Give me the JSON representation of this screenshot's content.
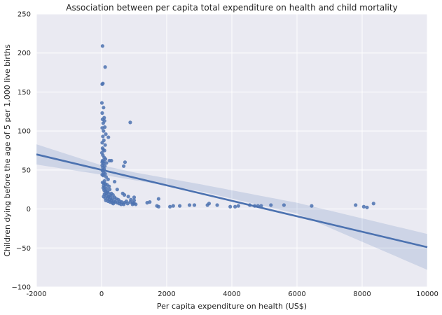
{
  "chart_data": {
    "type": "scatter",
    "title": "Association between per capita total expenditure on health and child mortality",
    "xlabel": "Per capita expenditure on health (US$)",
    "ylabel": "Children dying before the age of 5 per 1,000 live births",
    "xlim": [
      -2000,
      10000
    ],
    "ylim": [
      -100,
      250
    ],
    "xticks": [
      -2000,
      0,
      2000,
      4000,
      6000,
      8000,
      10000
    ],
    "yticks": [
      -100,
      -50,
      0,
      50,
      100,
      150,
      200,
      250
    ],
    "grid": true,
    "colors": {
      "background": "#eaeaf2",
      "grid": "#ffffff",
      "points": "#4c72b0",
      "regression_line": "#4c72b0",
      "confidence_band": "#4c72b0"
    },
    "regression": {
      "line": [
        [
          -2000,
          70
        ],
        [
          10000,
          -49
        ]
      ],
      "ci_upper": [
        [
          -2000,
          83
        ],
        [
          0,
          56
        ],
        [
          1000,
          47
        ],
        [
          3000,
          32
        ],
        [
          6000,
          8
        ],
        [
          10000,
          -32
        ]
      ],
      "ci_lower": [
        [
          -2000,
          57
        ],
        [
          0,
          44
        ],
        [
          1000,
          37
        ],
        [
          3000,
          23
        ],
        [
          6000,
          -6
        ],
        [
          10000,
          -78
        ]
      ]
    },
    "points": [
      [
        30,
        209
      ],
      [
        110,
        182
      ],
      [
        20,
        160
      ],
      [
        40,
        161
      ],
      [
        10,
        136
      ],
      [
        60,
        130
      ],
      [
        20,
        123
      ],
      [
        80,
        117
      ],
      [
        30,
        115
      ],
      [
        90,
        113
      ],
      [
        50,
        110
      ],
      [
        100,
        105
      ],
      [
        20,
        104
      ],
      [
        60,
        100
      ],
      [
        130,
        96
      ],
      [
        40,
        93
      ],
      [
        210,
        92
      ],
      [
        70,
        88
      ],
      [
        20,
        85
      ],
      [
        110,
        82
      ],
      [
        30,
        78
      ],
      [
        50,
        76
      ],
      [
        90,
        75
      ],
      [
        10,
        72
      ],
      [
        40,
        69
      ],
      [
        80,
        66
      ],
      [
        120,
        64
      ],
      [
        30,
        62
      ],
      [
        20,
        60
      ],
      [
        70,
        61
      ],
      [
        150,
        59
      ],
      [
        240,
        62
      ],
      [
        60,
        58
      ],
      [
        20,
        56
      ],
      [
        100,
        55
      ],
      [
        40,
        53
      ],
      [
        80,
        51
      ],
      [
        30,
        49
      ],
      [
        60,
        47
      ],
      [
        110,
        45
      ],
      [
        20,
        44
      ],
      [
        50,
        43
      ],
      [
        140,
        41
      ],
      [
        200,
        38
      ],
      [
        90,
        36
      ],
      [
        30,
        34
      ],
      [
        70,
        33
      ],
      [
        120,
        32
      ],
      [
        170,
        31
      ],
      [
        60,
        30
      ],
      [
        230,
        29
      ],
      [
        100,
        28
      ],
      [
        50,
        27
      ],
      [
        150,
        26
      ],
      [
        250,
        25
      ],
      [
        80,
        24
      ],
      [
        120,
        23
      ],
      [
        180,
        22
      ],
      [
        200,
        21
      ],
      [
        140,
        20
      ],
      [
        300,
        20
      ],
      [
        90,
        19
      ],
      [
        260,
        18
      ],
      [
        350,
        18
      ],
      [
        160,
        17
      ],
      [
        220,
        16
      ],
      [
        60,
        16
      ],
      [
        280,
        15
      ],
      [
        400,
        15
      ],
      [
        110,
        14
      ],
      [
        190,
        14
      ],
      [
        330,
        13
      ],
      [
        450,
        13
      ],
      [
        240,
        12
      ],
      [
        510,
        12
      ],
      [
        130,
        11
      ],
      [
        300,
        11
      ],
      [
        380,
        10
      ],
      [
        200,
        10
      ],
      [
        560,
        10
      ],
      [
        260,
        9
      ],
      [
        420,
        9
      ],
      [
        620,
        9
      ],
      [
        320,
        8
      ],
      [
        480,
        8
      ],
      [
        700,
        8
      ],
      [
        360,
        7
      ],
      [
        540,
        7
      ],
      [
        800,
        7
      ],
      [
        600,
        6
      ],
      [
        680,
        6
      ],
      [
        950,
        6
      ],
      [
        300,
        62
      ],
      [
        720,
        60
      ],
      [
        680,
        55
      ],
      [
        400,
        35
      ],
      [
        480,
        25
      ],
      [
        650,
        20
      ],
      [
        700,
        18
      ],
      [
        820,
        16
      ],
      [
        900,
        12
      ],
      [
        880,
        9
      ],
      [
        760,
        10
      ],
      [
        1000,
        15
      ],
      [
        1000,
        11
      ],
      [
        880,
        111
      ],
      [
        1050,
        6
      ],
      [
        1000,
        7
      ],
      [
        960,
        8
      ],
      [
        1400,
        8
      ],
      [
        1480,
        9
      ],
      [
        1700,
        4
      ],
      [
        1750,
        3
      ],
      [
        1750,
        13
      ],
      [
        2100,
        3
      ],
      [
        2200,
        4
      ],
      [
        2400,
        4
      ],
      [
        2700,
        5
      ],
      [
        2850,
        5
      ],
      [
        3250,
        5
      ],
      [
        3300,
        7
      ],
      [
        3550,
        5
      ],
      [
        3950,
        3
      ],
      [
        4100,
        3
      ],
      [
        4200,
        4
      ],
      [
        4550,
        5
      ],
      [
        4700,
        4
      ],
      [
        4800,
        4
      ],
      [
        4900,
        4
      ],
      [
        5200,
        5
      ],
      [
        5600,
        5
      ],
      [
        6450,
        4
      ],
      [
        7800,
        5
      ],
      [
        8050,
        3
      ],
      [
        8150,
        2
      ],
      [
        8350,
        7
      ]
    ]
  }
}
